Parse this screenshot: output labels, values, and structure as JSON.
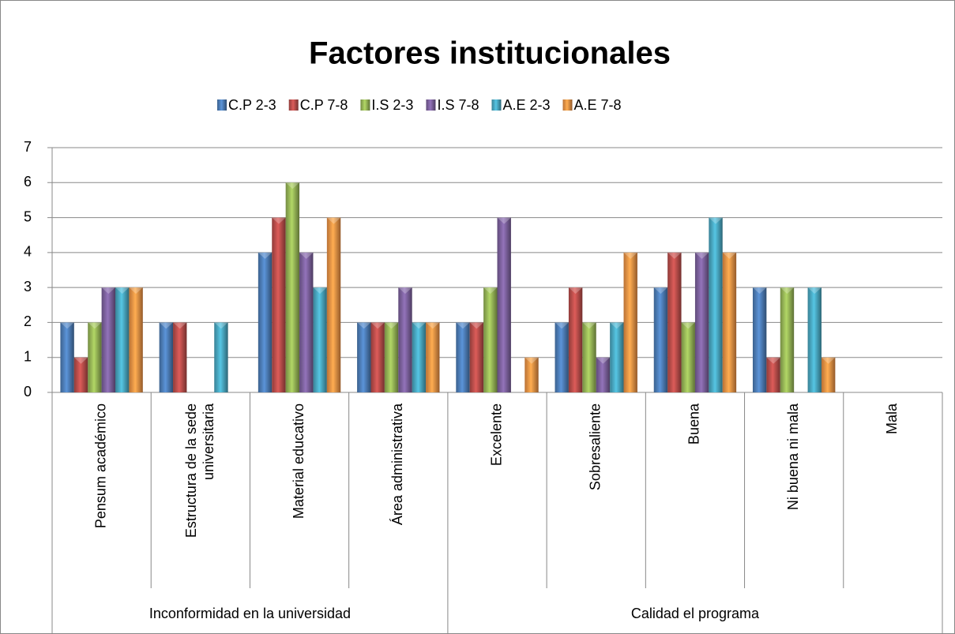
{
  "chart_data": {
    "type": "bar",
    "title": "Factores institucionales",
    "categories": [
      "Pensum académico",
      "Estructura de la sede universitaria",
      "Material educativo",
      "Área administrativa",
      "Excelente",
      "Sobresaliente",
      "Buena",
      "Ni buena ni mala",
      "Mala"
    ],
    "groups": [
      {
        "name": "Inconformidad en la universidad",
        "count": 4
      },
      {
        "name": "Calidad el programa",
        "count": 5
      }
    ],
    "series": [
      {
        "name": "C.P 2-3",
        "color": "#4f81bd",
        "values": [
          2,
          2,
          4,
          2,
          2,
          2,
          3,
          3,
          0
        ]
      },
      {
        "name": "C.P 7-8",
        "color": "#c0504d",
        "values": [
          1,
          2,
          5,
          2,
          2,
          3,
          4,
          1,
          0
        ]
      },
      {
        "name": "I.S 2-3",
        "color": "#9bbb59",
        "values": [
          2,
          0,
          6,
          2,
          3,
          2,
          2,
          3,
          0
        ]
      },
      {
        "name": "I.S 7-8",
        "color": "#8064a2",
        "values": [
          3,
          0,
          4,
          3,
          5,
          1,
          4,
          0,
          0
        ]
      },
      {
        "name": "A.E 2-3",
        "color": "#4bacc6",
        "values": [
          3,
          2,
          3,
          2,
          0,
          2,
          5,
          3,
          0
        ]
      },
      {
        "name": "A.E 7-8",
        "color": "#f79646",
        "values": [
          3,
          0,
          5,
          2,
          1,
          4,
          4,
          1,
          0
        ]
      }
    ],
    "ylim": [
      0,
      7
    ],
    "yticks": [
      0,
      1,
      2,
      3,
      4,
      5,
      6,
      7
    ],
    "grid": true,
    "legend": "top"
  }
}
